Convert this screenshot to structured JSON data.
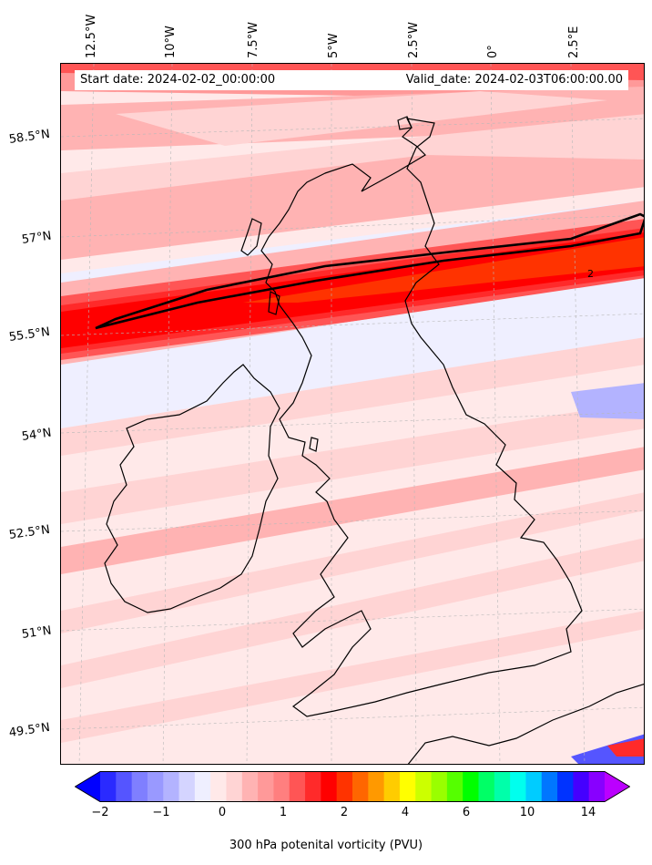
{
  "map": {
    "start_label": "Start date: 2024-02-02_00:00:00",
    "valid_label": "Valid_date: 2024-02-03T06:00:00.00",
    "contour_label": "2",
    "longitude_labels": [
      "12.5°W",
      "10°W",
      "7.5°W",
      "5°W",
      "2.5°W",
      "0°",
      "2.5°E"
    ],
    "latitude_labels": [
      "58.5°N",
      "57°N",
      "55.5°N",
      "54°N",
      "52.5°N",
      "51°N",
      "49.5°N"
    ],
    "field": "300 hPa potenital vorticity",
    "contour_level_pvu": 2
  },
  "colorbar": {
    "label": "300 hPa potenital vorticity (PVU)",
    "tick_labels": [
      "−2",
      "−1",
      "0",
      "1",
      "2",
      "4",
      "6",
      "10",
      "14"
    ],
    "colors": [
      "#0000ff",
      "#2a2aff",
      "#5555ff",
      "#7f7fff",
      "#9999ff",
      "#b3b3ff",
      "#d4d4ff",
      "#efefff",
      "#ffe9e9",
      "#ffd4d4",
      "#ffb3b3",
      "#ff9999",
      "#ff7f7f",
      "#ff5555",
      "#ff2a2a",
      "#ff0000",
      "#ff3300",
      "#ff6600",
      "#ff9900",
      "#ffcc00",
      "#ffff00",
      "#ccff00",
      "#99ff00",
      "#55ff00",
      "#00ff00",
      "#00ff66",
      "#00ffaa",
      "#00ffee",
      "#00ccff",
      "#0077ff",
      "#0033ff",
      "#4400ff",
      "#8800ff",
      "#bb00ff"
    ]
  }
}
